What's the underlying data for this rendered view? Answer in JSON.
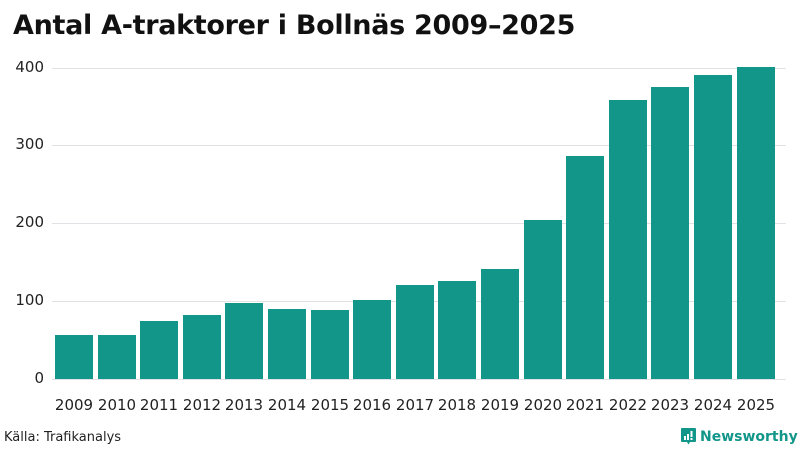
{
  "header": {
    "title": "Antal A-traktorer i Bollnäs 2009–2025"
  },
  "footer": {
    "source": "Källa: Trafikanalys",
    "brand": "Newsworthy"
  },
  "colors": {
    "bar": "#13968a",
    "brand": "#13968a",
    "grid": "#e2e2e6"
  },
  "chart_data": {
    "type": "bar",
    "title": "Antal A-traktorer i Bollnäs 2009–2025",
    "xlabel": "",
    "ylabel": "",
    "categories": [
      "2009",
      "2010",
      "2011",
      "2012",
      "2013",
      "2014",
      "2015",
      "2016",
      "2017",
      "2018",
      "2019",
      "2020",
      "2021",
      "2022",
      "2023",
      "2024",
      "2025"
    ],
    "values": [
      56,
      57,
      75,
      82,
      97,
      90,
      89,
      101,
      121,
      126,
      141,
      204,
      286,
      358,
      375,
      391,
      401
    ],
    "ylim": [
      0,
      400
    ],
    "yticks": [
      0,
      100,
      200,
      300,
      400
    ],
    "grid": true,
    "legend": null,
    "source": "Källa: Trafikanalys"
  }
}
